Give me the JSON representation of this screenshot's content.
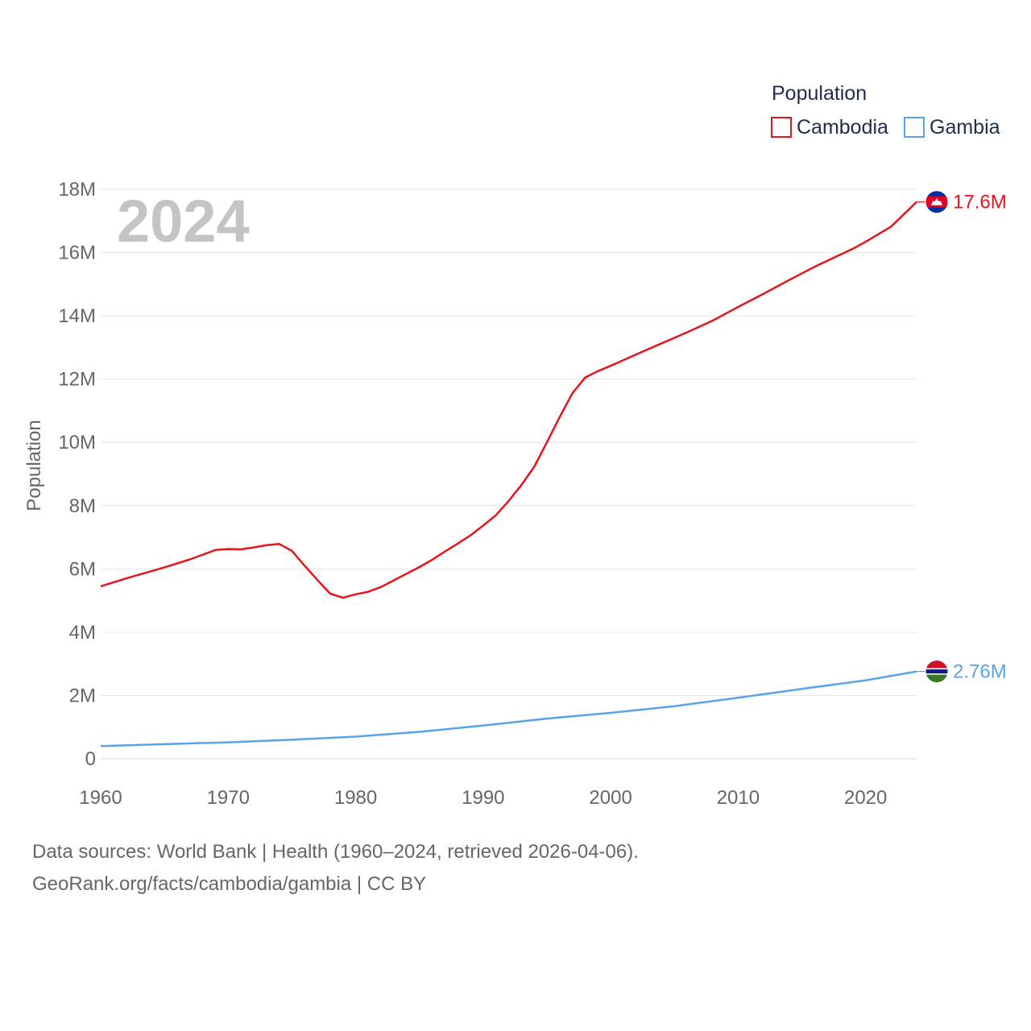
{
  "chart_data": {
    "type": "line",
    "year_label": "2024",
    "ylabel": "Population",
    "legend_title": "Population",
    "xlim": [
      1960,
      2024
    ],
    "ylim": [
      0,
      18000000
    ],
    "x_ticks": [
      1960,
      1970,
      1980,
      1990,
      2000,
      2010,
      2020
    ],
    "y_ticks": [
      {
        "value": 0,
        "label": "0"
      },
      {
        "value": 2000000,
        "label": "2M"
      },
      {
        "value": 4000000,
        "label": "4M"
      },
      {
        "value": 6000000,
        "label": "6M"
      },
      {
        "value": 8000000,
        "label": "8M"
      },
      {
        "value": 10000000,
        "label": "10M"
      },
      {
        "value": 12000000,
        "label": "12M"
      },
      {
        "value": 14000000,
        "label": "14M"
      },
      {
        "value": 16000000,
        "label": "16M"
      },
      {
        "value": 18000000,
        "label": "18M"
      }
    ],
    "series": [
      {
        "name": "Cambodia",
        "color": "#e8141a",
        "end_label": "17.6M",
        "flag": [
          "#032ea1",
          "#e00025",
          "#032ea1"
        ],
        "x": [
          1960,
          1962,
          1965,
          1967,
          1969,
          1970,
          1971,
          1972,
          1973,
          1974,
          1975,
          1976,
          1977,
          1978,
          1979,
          1980,
          1981,
          1982,
          1983,
          1984,
          1985,
          1986,
          1987,
          1988,
          1989,
          1990,
          1991,
          1992,
          1993,
          1994,
          1995,
          1996,
          1997,
          1998,
          1999,
          2000,
          2002,
          2004,
          2006,
          2008,
          2010,
          2012,
          2014,
          2016,
          2018,
          2019,
          2020,
          2022,
          2024
        ],
        "values": [
          5450000,
          5700000,
          6050000,
          6300000,
          6600000,
          6630000,
          6620000,
          6680000,
          6750000,
          6790000,
          6570000,
          6100000,
          5650000,
          5220000,
          5090000,
          5200000,
          5280000,
          5430000,
          5640000,
          5850000,
          6060000,
          6290000,
          6550000,
          6800000,
          7060000,
          7370000,
          7700000,
          8150000,
          8650000,
          9230000,
          10000000,
          10800000,
          11550000,
          12050000,
          12250000,
          12420000,
          12780000,
          13130000,
          13480000,
          13850000,
          14280000,
          14700000,
          15130000,
          15550000,
          15930000,
          16120000,
          16340000,
          16820000,
          17600000
        ]
      },
      {
        "name": "Gambia",
        "color": "#5aa3e8",
        "end_label": "2.76M",
        "flag": [
          "#ce1126",
          "#0c1c8c",
          "#3a7728"
        ],
        "x": [
          1960,
          1965,
          1970,
          1975,
          1980,
          1985,
          1990,
          1995,
          2000,
          2005,
          2010,
          2015,
          2020,
          2024
        ],
        "values": [
          400000,
          460000,
          520000,
          600000,
          700000,
          850000,
          1050000,
          1270000,
          1450000,
          1660000,
          1930000,
          2210000,
          2480000,
          2760000
        ]
      }
    ]
  },
  "footer": {
    "line1": "Data sources: World Bank | Health (1960–2024, retrieved 2026-04-06).",
    "line2": "GeoRank.org/facts/cambodia/gambia | CC BY"
  }
}
